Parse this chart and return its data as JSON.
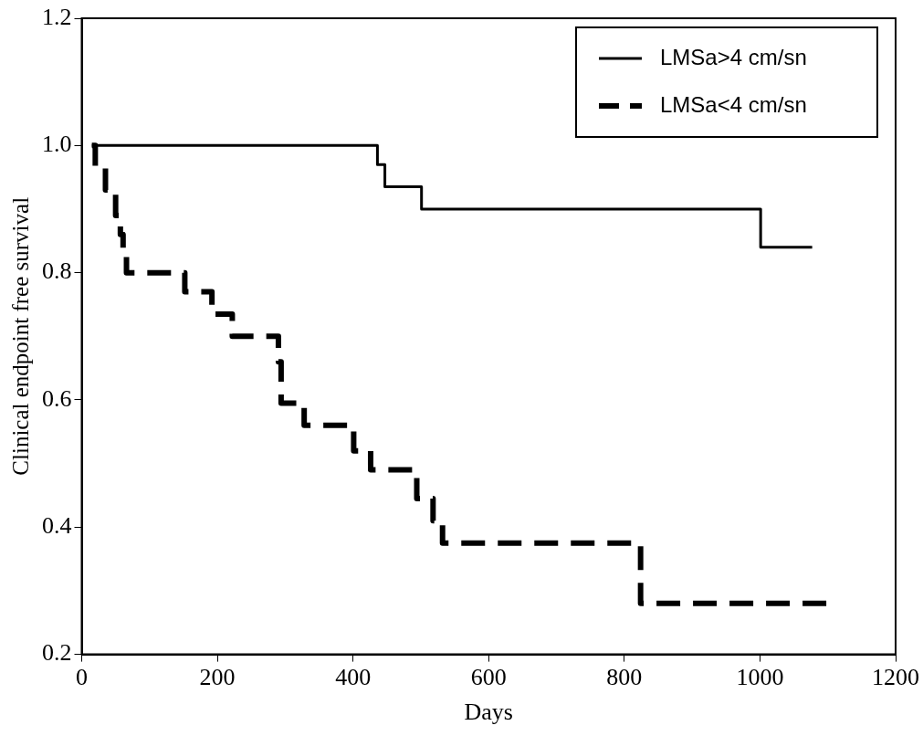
{
  "chart_data": {
    "type": "step",
    "xlabel": "Days",
    "ylabel": "Clinical endpoint free survival",
    "xlim": [
      0,
      1200
    ],
    "xticks": [
      0,
      200,
      400,
      600,
      800,
      1000,
      1200
    ],
    "ylim": [
      0.2,
      1.2
    ],
    "yticks": [
      {
        "value": 0.2,
        "label": "0.2"
      },
      {
        "value": 0.4,
        "label": "0.4"
      },
      {
        "value": 0.6,
        "label": "0.6"
      },
      {
        "value": 0.8,
        "label": "0.8"
      },
      {
        "value": 1.0,
        "label": "1.0"
      },
      {
        "value": 1.2,
        "label": "1.2"
      }
    ],
    "grid": false,
    "legend": "top right",
    "marker": "none",
    "series": [
      {
        "name": "LMSa>4 cm/sn",
        "color": "#000000",
        "line_style": "solid",
        "x": [
          15,
          436,
          447,
          501,
          1001,
          1077
        ],
        "values": [
          1.0,
          0.97,
          0.935,
          0.9,
          0.84,
          0.84
        ]
      },
      {
        "name": "LMSa<4 cm/sn",
        "color": "#000000",
        "line_style": "dashed",
        "x": [
          15,
          20,
          35,
          50,
          57,
          61,
          66,
          152,
          192,
          222,
          290,
          294,
          328,
          401,
          426,
          494,
          518,
          532,
          824,
          1099
        ],
        "values": [
          1.0,
          0.965,
          0.93,
          0.89,
          0.86,
          0.83,
          0.8,
          0.77,
          0.735,
          0.7,
          0.66,
          0.595,
          0.56,
          0.52,
          0.49,
          0.445,
          0.41,
          0.375,
          0.28,
          0.28
        ]
      }
    ]
  }
}
